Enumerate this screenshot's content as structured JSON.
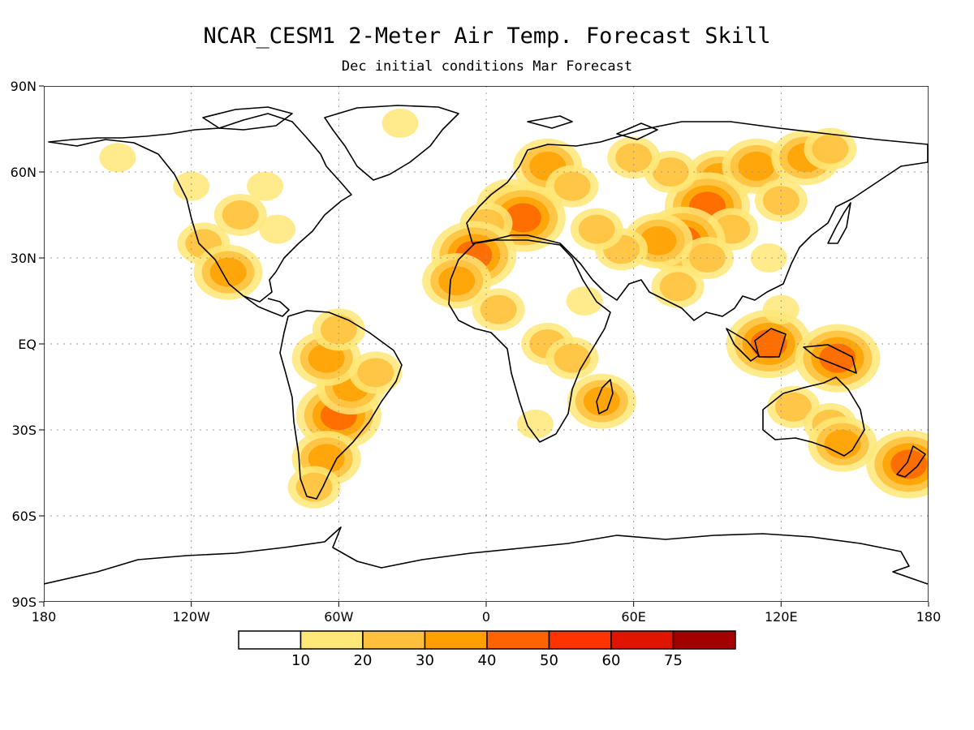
{
  "title": "NCAR_CESM1 2-Meter Air Temp. Forecast Skill",
  "subtitle": "Dec initial conditions  Mar Forecast",
  "map": {
    "projection": "equirectangular",
    "lon_range": [
      -180,
      180
    ],
    "lat_range": [
      -90,
      90
    ],
    "lat_ticks": [
      {
        "lat": 90,
        "label": "90N"
      },
      {
        "lat": 60,
        "label": "60N"
      },
      {
        "lat": 30,
        "label": "30N"
      },
      {
        "lat": 0,
        "label": "EQ"
      },
      {
        "lat": -30,
        "label": "30S"
      },
      {
        "lat": -60,
        "label": "60S"
      },
      {
        "lat": -90,
        "label": "90S"
      }
    ],
    "lon_ticks": [
      {
        "lon": -180,
        "label": "180"
      },
      {
        "lon": -120,
        "label": "120W"
      },
      {
        "lon": -60,
        "label": "60W"
      },
      {
        "lon": 0,
        "label": "0"
      },
      {
        "lon": 60,
        "label": "60E"
      },
      {
        "lon": 120,
        "label": "120E"
      },
      {
        "lon": 180,
        "label": "180"
      }
    ],
    "gridlines": true
  },
  "colorbar": {
    "levels": [
      "10",
      "20",
      "30",
      "40",
      "50",
      "60",
      "75"
    ],
    "colors": [
      "#ffffff",
      "#ffe878",
      "#ffc03c",
      "#ffa000",
      "#ff6400",
      "#ff3200",
      "#e11400",
      "#a50000"
    ]
  },
  "skill_regions": [
    {
      "lon": 95,
      "lat": 58,
      "level": 3
    },
    {
      "lon": 90,
      "lat": 48,
      "level": 4
    },
    {
      "lon": 110,
      "lat": 62,
      "level": 3
    },
    {
      "lon": 130,
      "lat": 65,
      "level": 3
    },
    {
      "lon": 75,
      "lat": 60,
      "level": 2
    },
    {
      "lon": 60,
      "lat": 65,
      "level": 2
    },
    {
      "lon": 120,
      "lat": 50,
      "level": 2
    },
    {
      "lon": 140,
      "lat": 68,
      "level": 2
    },
    {
      "lon": 100,
      "lat": 40,
      "level": 2
    },
    {
      "lon": 80,
      "lat": 36,
      "level": 4
    },
    {
      "lon": 70,
      "lat": 36,
      "level": 3
    },
    {
      "lon": 90,
      "lat": 30,
      "level": 2
    },
    {
      "lon": 55,
      "lat": 33,
      "level": 2
    },
    {
      "lon": 45,
      "lat": 40,
      "level": 2
    },
    {
      "lon": 115,
      "lat": 30,
      "level": 1
    },
    {
      "lon": 78,
      "lat": 20,
      "level": 2
    },
    {
      "lon": 10,
      "lat": 48,
      "level": 3
    },
    {
      "lon": 20,
      "lat": 50,
      "level": 2
    },
    {
      "lon": 25,
      "lat": 62,
      "level": 3
    },
    {
      "lon": 15,
      "lat": 44,
      "level": 4
    },
    {
      "lon": 0,
      "lat": 42,
      "level": 2
    },
    {
      "lon": 35,
      "lat": 55,
      "level": 2
    },
    {
      "lon": -5,
      "lat": 31,
      "level": 4
    },
    {
      "lon": -12,
      "lat": 22,
      "level": 3
    },
    {
      "lon": 5,
      "lat": 12,
      "level": 2
    },
    {
      "lon": 25,
      "lat": 0,
      "level": 2
    },
    {
      "lon": 35,
      "lat": -5,
      "level": 2
    },
    {
      "lon": 47,
      "lat": -20,
      "level": 3
    },
    {
      "lon": 20,
      "lat": -28,
      "level": 1
    },
    {
      "lon": 40,
      "lat": 15,
      "level": 1
    },
    {
      "lon": -60,
      "lat": -25,
      "level": 4
    },
    {
      "lon": -55,
      "lat": -15,
      "level": 3
    },
    {
      "lon": -65,
      "lat": -5,
      "level": 3
    },
    {
      "lon": -60,
      "lat": 5,
      "level": 2
    },
    {
      "lon": -45,
      "lat": -10,
      "level": 2
    },
    {
      "lon": -65,
      "lat": -40,
      "level": 3
    },
    {
      "lon": -70,
      "lat": -50,
      "level": 2
    },
    {
      "lon": -100,
      "lat": 45,
      "level": 2
    },
    {
      "lon": -115,
      "lat": 35,
      "level": 2
    },
    {
      "lon": -105,
      "lat": 25,
      "level": 3
    },
    {
      "lon": -85,
      "lat": 40,
      "level": 1
    },
    {
      "lon": -120,
      "lat": 55,
      "level": 1
    },
    {
      "lon": -90,
      "lat": 55,
      "level": 1
    },
    {
      "lon": -150,
      "lat": 65,
      "level": 1
    },
    {
      "lon": -35,
      "lat": 77,
      "level": 1
    },
    {
      "lon": 115,
      "lat": 0,
      "level": 4
    },
    {
      "lon": 143,
      "lat": -5,
      "level": 4
    },
    {
      "lon": 125,
      "lat": -22,
      "level": 2
    },
    {
      "lon": 140,
      "lat": -28,
      "level": 2
    },
    {
      "lon": 145,
      "lat": -35,
      "level": 3
    },
    {
      "lon": 172,
      "lat": -42,
      "level": 4
    },
    {
      "lon": 120,
      "lat": 12,
      "level": 1
    }
  ]
}
